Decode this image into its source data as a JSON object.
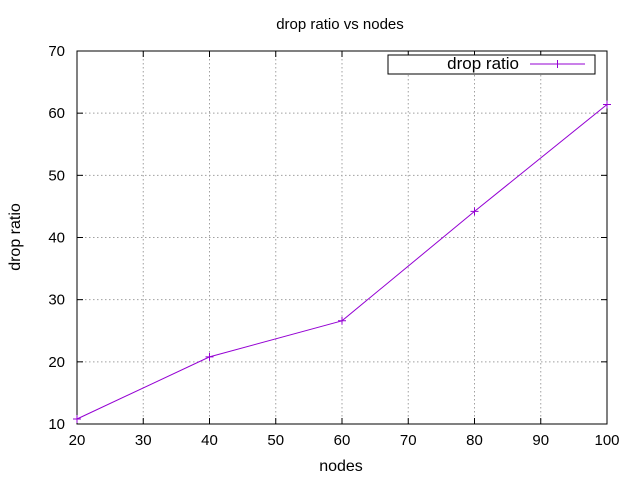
{
  "chart_data": {
    "type": "line",
    "title": "drop ratio vs nodes",
    "xlabel": "nodes",
    "ylabel": "drop ratio",
    "xlim": [
      20,
      100
    ],
    "ylim": [
      10,
      70
    ],
    "xticks": [
      20,
      30,
      40,
      50,
      60,
      70,
      80,
      90,
      100
    ],
    "yticks": [
      10,
      20,
      30,
      40,
      50,
      60,
      70
    ],
    "grid": true,
    "legend_position": "top-right",
    "series": [
      {
        "name": "drop ratio",
        "color": "#9400d3",
        "marker": "plus",
        "x": [
          20,
          40,
          60,
          80,
          100
        ],
        "y": [
          10.8,
          20.8,
          26.6,
          44.2,
          61.4
        ]
      }
    ]
  }
}
